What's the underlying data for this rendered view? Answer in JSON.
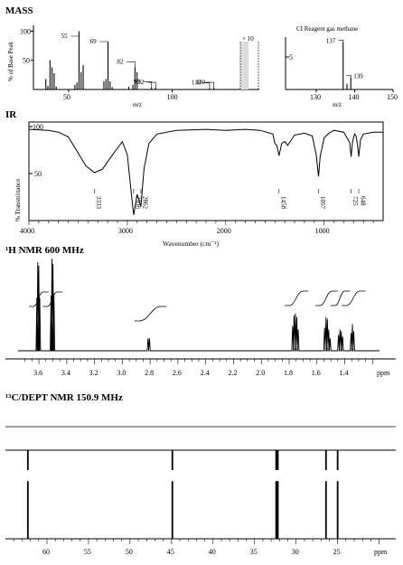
{
  "chart_data": [
    {
      "id": "ms-ei",
      "type": "bar",
      "title": "MASS",
      "xlabel": "m/z",
      "ylabel": "% of Base Peak",
      "xlim": [
        33,
        142
      ],
      "ylim": [
        0,
        110
      ],
      "xticks": [
        50,
        100
      ],
      "yticks": [
        50,
        100
      ],
      "zoom_label": "× 10",
      "x": [
        39,
        40,
        41,
        42,
        43,
        44,
        53,
        54,
        55,
        56,
        57,
        67,
        68,
        69,
        70,
        71,
        79,
        81,
        82,
        83,
        90,
        92,
        118,
        120
      ],
      "values": [
        18,
        6,
        50,
        38,
        28,
        5,
        8,
        12,
        100,
        30,
        42,
        14,
        18,
        82,
        14,
        4,
        5,
        8,
        38,
        30,
        4,
        3,
        2,
        3
      ],
      "annotations": [
        {
          "x": 55,
          "label": "55"
        },
        {
          "x": 69,
          "label": "69"
        },
        {
          "x": 82,
          "label": "82"
        },
        {
          "x": 90,
          "label": "90"
        },
        {
          "x": 92,
          "label": "92"
        },
        {
          "x": 118,
          "label": "118"
        },
        {
          "x": 120,
          "label": "120"
        }
      ]
    },
    {
      "id": "ms-ci",
      "type": "bar",
      "title": "CI Reagent gas methane",
      "xlabel": "m/z",
      "xlim": [
        122,
        150
      ],
      "xticks": [
        130,
        140,
        150
      ],
      "ylim": [
        0,
        110
      ],
      "ytick_label": "5",
      "x": [
        137,
        138,
        139
      ],
      "values": [
        100,
        12,
        26
      ],
      "annotations": [
        {
          "x": 137,
          "label": "137"
        },
        {
          "x": 139,
          "label": "139"
        }
      ]
    },
    {
      "id": "ir",
      "type": "line",
      "title": "IR",
      "xlabel": "Wavenumber (cm⁻¹)",
      "ylabel": "% Transmittance",
      "xlim": [
        4000,
        400
      ],
      "ylim": [
        0,
        100
      ],
      "xticks": [
        4000,
        3000,
        2000,
        1000
      ],
      "yticks": [
        50,
        100
      ],
      "x": [
        4000,
        3800,
        3700,
        3600,
        3500,
        3420,
        3333,
        3250,
        3150,
        3050,
        3000,
        2960,
        2935,
        2900,
        2862,
        2830,
        2780,
        2700,
        2500,
        2200,
        2000,
        1800,
        1650,
        1520,
        1500,
        1480,
        1458,
        1430,
        1400,
        1370,
        1300,
        1200,
        1120,
        1080,
        1057,
        1040,
        1000,
        950,
        900,
        800,
        740,
        725,
        710,
        690,
        675,
        660,
        648,
        630,
        600,
        500,
        400
      ],
      "y": [
        97,
        96,
        94,
        89,
        72,
        58,
        51,
        55,
        70,
        84,
        70,
        30,
        6,
        28,
        15,
        55,
        82,
        92,
        96,
        97,
        96,
        97,
        96,
        92,
        82,
        80,
        69,
        82,
        84,
        80,
        91,
        93,
        90,
        70,
        47,
        68,
        88,
        93,
        96,
        94,
        83,
        68,
        84,
        92,
        90,
        80,
        68,
        86,
        92,
        94,
        94
      ],
      "peak_labels": [
        "3333",
        "2936",
        "2862",
        "1458",
        "1057",
        "725",
        "648"
      ],
      "peak_x": [
        3333,
        2936,
        2862,
        1458,
        1057,
        725,
        648
      ]
    },
    {
      "id": "h-nmr",
      "type": "line",
      "title": "¹H NMR 600 MHz",
      "xlabel": "ppm",
      "xlim": [
        3.75,
        1.15
      ],
      "xticks": [
        3.6,
        3.4,
        3.2,
        3.0,
        2.8,
        2.6,
        2.4,
        2.2,
        2.0,
        1.8,
        1.6,
        1.4
      ],
      "xtick_labels": [
        "3.6",
        "3.4",
        "3.2",
        "3.0",
        "2.8",
        "2.6",
        "2.4",
        "2.2",
        "2.0",
        "1.8",
        "1.6",
        "1.4"
      ],
      "peaks_ppm": [
        3.615,
        3.608,
        3.601,
        3.594,
        3.513,
        3.506,
        3.499,
        3.492,
        2.815,
        2.805,
        1.775,
        1.765,
        1.755,
        1.745,
        1.735,
        1.545,
        1.535,
        1.525,
        1.515,
        1.505,
        1.445,
        1.435,
        1.425,
        1.415,
        1.355,
        1.345,
        1.335
      ],
      "peak_heights": [
        60,
        100,
        96,
        60,
        62,
        104,
        98,
        64,
        14,
        14,
        28,
        40,
        42,
        38,
        24,
        26,
        38,
        36,
        24,
        14,
        18,
        24,
        22,
        16,
        20,
        30,
        22
      ],
      "integrals": [
        {
          "from": 3.64,
          "to": 3.57
        },
        {
          "from": 3.54,
          "to": 3.47
        },
        {
          "from": 2.88,
          "to": 2.72
        },
        {
          "from": 1.8,
          "to": 1.7
        },
        {
          "from": 1.58,
          "to": 1.49
        },
        {
          "from": 1.47,
          "to": 1.4
        },
        {
          "from": 1.39,
          "to": 1.29
        }
      ]
    },
    {
      "id": "c-nmr",
      "type": "bar",
      "title": "¹³C/DEPT NMR 150.9 MHz",
      "xlabel": "ppm",
      "xlim": [
        65,
        18
      ],
      "xticks": [
        60,
        55,
        50,
        45,
        40,
        35,
        30,
        25
      ],
      "x": [
        62.3,
        44.9,
        32.4,
        32.2,
        26.4,
        25.0
      ],
      "values": [
        85,
        85,
        85,
        85,
        85,
        85
      ],
      "dept_down": [
        false,
        false,
        false,
        false,
        false,
        false
      ]
    }
  ]
}
